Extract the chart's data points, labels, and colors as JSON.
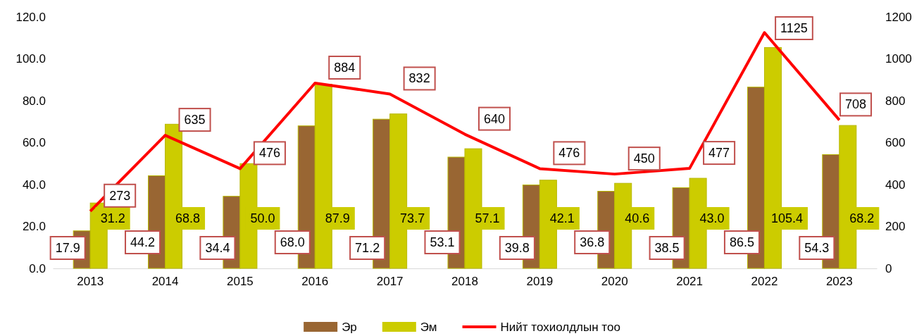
{
  "chart_data": {
    "type": "bar",
    "categories": [
      "2013",
      "2014",
      "2015",
      "2016",
      "2017",
      "2018",
      "2019",
      "2020",
      "2021",
      "2022",
      "2023"
    ],
    "series": [
      {
        "name": "Эр",
        "color": "#996633",
        "values": [
          17.9,
          44.2,
          34.4,
          68.0,
          71.2,
          53.1,
          39.8,
          36.8,
          38.5,
          86.5,
          54.3
        ],
        "value_labels": [
          "17.9",
          "44.2",
          "34.4",
          "68.0",
          "71.2",
          "53.1",
          "39.8",
          "36.8",
          "38.5",
          "86.5",
          "54.3"
        ]
      },
      {
        "name": "Эм",
        "color": "#cccc00",
        "values": [
          31.2,
          68.8,
          50.0,
          87.9,
          73.7,
          57.1,
          42.1,
          40.6,
          43.0,
          105.4,
          68.2
        ],
        "value_labels": [
          "31.2",
          "68.8",
          "50.0",
          "87.9",
          "73.7",
          "57.1",
          "42.1",
          "40.6",
          "43.0",
          "105.4",
          "68.2"
        ]
      },
      {
        "name": "Нийт тохиолдлын тоо",
        "type": "line",
        "axis": "y2",
        "color": "#ff0000",
        "values": [
          273,
          635,
          476,
          884,
          832,
          640,
          476,
          450,
          477,
          1125,
          708
        ],
        "value_labels": [
          "273",
          "635",
          "476",
          "884",
          "832",
          "640",
          "476",
          "450",
          "477",
          "1125",
          "708"
        ]
      }
    ],
    "ylim": [
      0,
      120
    ],
    "yticks": [
      {
        "value": 0,
        "label": "0.0"
      },
      {
        "value": 20,
        "label": "20.0"
      },
      {
        "value": 40,
        "label": "40.0"
      },
      {
        "value": 60,
        "label": "60.0"
      },
      {
        "value": 80,
        "label": "80.0"
      },
      {
        "value": 100,
        "label": "100.0"
      },
      {
        "value": 120,
        "label": "120.0"
      }
    ],
    "y2lim": [
      0,
      1200
    ],
    "y2ticks": [
      0,
      200,
      400,
      600,
      800,
      1000,
      1200
    ],
    "legend": "bottom",
    "grid": false,
    "marker": "none",
    "line_style": "solid"
  }
}
